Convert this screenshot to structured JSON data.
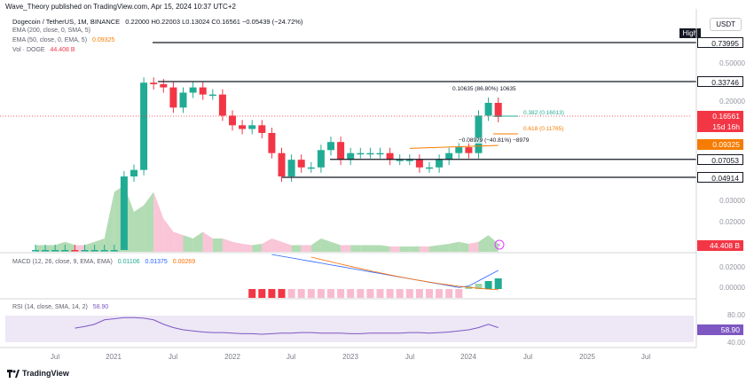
{
  "header": {
    "publisher_line": "Wave_Theory published on TradingView.com, Apr 15, 2024 10:37 UTC+2",
    "symbol": "Dogecoin / TetherUS, 1M, BINANCE",
    "ohlc": "0.22000 H0.22003 L0.13024 C0.16561 −0.05439 (−24.72%)"
  },
  "legend": {
    "ema200": "EMA (200, close, 0, SMA, 5)",
    "ema50": "EMA (50, close, 0, EMA, 5)",
    "ema50_value": "0.09325",
    "vol": "Vol · DOGE",
    "vol_value": "44.408 B",
    "macd": "MACD (12, 26, close, 9, EMA, EMA)",
    "macd_values": [
      "0.01106",
      "0.01375",
      "0.00269"
    ],
    "rsi": "RSI (14, close, SMA, 14, 2)",
    "rsi_value": "58.90"
  },
  "right_axis": {
    "currency": "USDT",
    "high_label": "High",
    "price_boxes": [
      "0.73995",
      "0.33746",
      "0.16561",
      "15d 16h",
      "0.09325",
      "0.07053",
      "0.04914",
      "44.408 B",
      "58.90"
    ],
    "price_ticks": [
      "0.50000",
      "0.20000",
      "0.03000",
      "0.02000"
    ],
    "macd_ticks": [
      "0.02000",
      "0.00000"
    ],
    "rsi_ticks": [
      "80.00",
      "40.00"
    ]
  },
  "time_axis": [
    "Jul",
    "2021",
    "Jul",
    "2022",
    "Jul",
    "2023",
    "Jul",
    "2024",
    "Jul",
    "2025",
    "Jul"
  ],
  "annotations": {
    "range_measure": "0.10635 (86.80%) 10635",
    "fib_382": "0.382 (0.16013)",
    "fib_618": "0.618 (0.11765)",
    "drop_measure": "−0.08979 (−40.81%) −8979"
  },
  "footer": {
    "brand": "TradingView"
  },
  "colors": {
    "up": "#22ab94",
    "down": "#f23645",
    "ema50": "#f57c00",
    "ema200": "#f23645",
    "macd": "#2962ff",
    "signal": "#ff6d00",
    "rsi": "#7e57c2",
    "vol_up": "#a5d6a7",
    "vol_down": "#f8bbd0"
  },
  "chart_data": {
    "type": "candlestick",
    "title": "Dogecoin / TetherUS, 1M, BINANCE",
    "y_scale": "log",
    "x": [
      "2020-05",
      "2020-06",
      "2020-07",
      "2020-08",
      "2020-09",
      "2020-10",
      "2020-11",
      "2020-12",
      "2021-01",
      "2021-02",
      "2021-03",
      "2021-04",
      "2021-05",
      "2021-06",
      "2021-07",
      "2021-08",
      "2021-09",
      "2021-10",
      "2021-11",
      "2021-12",
      "2022-01",
      "2022-02",
      "2022-03",
      "2022-04",
      "2022-05",
      "2022-06",
      "2022-07",
      "2022-08",
      "2022-09",
      "2022-10",
      "2022-11",
      "2022-12",
      "2023-01",
      "2023-02",
      "2023-03",
      "2023-04",
      "2023-05",
      "2023-06",
      "2023-07",
      "2023-08",
      "2023-09",
      "2023-10",
      "2023-11",
      "2023-12",
      "2024-01",
      "2024-02",
      "2024-03",
      "2024-04"
    ],
    "series": [
      {
        "name": "Dogecoin / TetherUS",
        "open": [
          0.0025,
          0.0025,
          0.0025,
          0.0033,
          0.0035,
          0.0026,
          0.0026,
          0.0035,
          0.0047,
          0.009,
          0.05,
          0.057,
          0.33,
          0.32,
          0.3,
          0.2,
          0.27,
          0.3,
          0.26,
          0.26,
          0.17,
          0.14,
          0.13,
          0.14,
          0.12,
          0.08,
          0.05,
          0.07,
          0.06,
          0.06,
          0.085,
          0.1,
          0.07,
          0.08,
          0.08,
          0.08,
          0.08,
          0.07,
          0.07,
          0.07,
          0.06,
          0.06,
          0.07,
          0.08,
          0.09,
          0.08,
          0.17,
          0.22
        ],
        "close": [
          0.0025,
          0.0025,
          0.0033,
          0.0035,
          0.0026,
          0.0026,
          0.0035,
          0.0047,
          0.009,
          0.05,
          0.057,
          0.33,
          0.32,
          0.3,
          0.2,
          0.27,
          0.3,
          0.26,
          0.26,
          0.17,
          0.14,
          0.13,
          0.14,
          0.12,
          0.08,
          0.05,
          0.07,
          0.06,
          0.06,
          0.085,
          0.1,
          0.07,
          0.08,
          0.08,
          0.08,
          0.08,
          0.07,
          0.07,
          0.07,
          0.06,
          0.06,
          0.07,
          0.08,
          0.09,
          0.08,
          0.17,
          0.22,
          0.16561
        ]
      }
    ],
    "horizontal_levels": [
      0.73995,
      0.33746,
      0.07053,
      0.04914
    ],
    "ema50_last": 0.09325,
    "volume_last": "44.408 B",
    "macd_last": {
      "macd": 0.01106,
      "signal": 0.01375,
      "histogram": 0.00269
    },
    "rsi_last": 58.9
  }
}
